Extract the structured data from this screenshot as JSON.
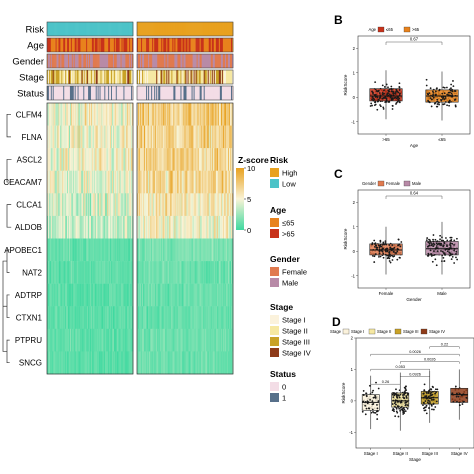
{
  "heatmap": {
    "annotation_rows": [
      "Risk",
      "Age",
      "Gender",
      "Stage",
      "Status"
    ],
    "genes": [
      "CLFM4",
      "FLNA",
      "ASCL2",
      "CEACAM7",
      "CLCA1",
      "ALDOB",
      "APOBEC1",
      "NAT2",
      "ADTRP",
      "CTXN1",
      "PTPRU",
      "SNCG"
    ],
    "groups": [
      "High",
      "Low"
    ],
    "low_group_fraction": 0.58,
    "gene_mean_zscore": [
      6.3,
      6.0,
      5.8,
      5.6,
      5.1,
      4.3,
      1.3,
      1.1,
      1.0,
      0.9,
      1.1,
      1.0
    ],
    "group_shift": [
      1.1,
      0.9,
      1.0,
      1.0,
      0.9,
      0.8,
      0.3,
      0.2,
      0.2,
      0.2,
      0.2,
      0.2
    ],
    "colors": {
      "risk_high": "#e8a11f",
      "risk_low": "#4cc3c8",
      "age_young": "#e8821c",
      "age_old": "#c8321a",
      "female": "#e07a4f",
      "male": "#b88aa7",
      "stage_1": "#fbf2dc",
      "stage_2": "#f6e8a2",
      "stage_3": "#c9a227",
      "stage_4": "#8e3b19",
      "status_0": "#f3dde6",
      "status_1": "#57708a",
      "heat_low": "#3fd9a0",
      "heat_mid": "#f9f3d6",
      "heat_high": "#e8a11f"
    }
  },
  "legend": {
    "zscore": {
      "title": "Z-score",
      "ticks": [
        "10",
        "5",
        "0"
      ],
      "range": [
        0,
        10
      ]
    },
    "risk": {
      "title": "Risk",
      "items": [
        "High",
        "Low"
      ]
    },
    "age": {
      "title": "Age",
      "items": [
        "≤65",
        ">65"
      ]
    },
    "gender": {
      "title": "Gender",
      "items": [
        "Female",
        "Male"
      ]
    },
    "stage": {
      "title": "Stage",
      "items": [
        "Stage I",
        "Stage II",
        "Stage III",
        "Stage IV"
      ]
    },
    "status": {
      "title": "Status",
      "items": [
        "0",
        "1"
      ]
    }
  },
  "chart_data": [
    {
      "panel": "B",
      "type": "box",
      "legend_title": "Age",
      "legend_items": [
        "≤65",
        ">65"
      ],
      "categories": [
        ">65",
        "≤65"
      ],
      "xlabel": "Age",
      "ylabel": "RiskScore",
      "pvalue": "0.67",
      "ylim": [
        -1.5,
        2.5
      ],
      "boxes": [
        {
          "q1": -0.15,
          "median": 0.05,
          "q3": 0.35,
          "whisker_low": -0.9,
          "whisker_high": 1.1,
          "color": "#c8321a",
          "n": 170
        },
        {
          "q1": -0.2,
          "median": 0.05,
          "q3": 0.3,
          "whisker_low": -0.95,
          "whisker_high": 1.05,
          "color": "#e8821c",
          "n": 110
        }
      ]
    },
    {
      "panel": "C",
      "type": "box",
      "legend_title": "Gender",
      "legend_items": [
        "Female",
        "Male"
      ],
      "categories": [
        "Female",
        "Male"
      ],
      "xlabel": "Gender",
      "ylabel": "RiskScore",
      "pvalue": "0.64",
      "ylim": [
        -1.5,
        2.5
      ],
      "boxes": [
        {
          "q1": -0.15,
          "median": 0.05,
          "q3": 0.3,
          "whisker_low": -0.95,
          "whisker_high": 1.0,
          "color": "#e07a4f",
          "n": 130
        },
        {
          "q1": -0.15,
          "median": 0.1,
          "q3": 0.4,
          "whisker_low": -0.95,
          "whisker_high": 1.2,
          "color": "#b88aa7",
          "n": 150
        }
      ]
    },
    {
      "panel": "D",
      "type": "box",
      "legend_title": "Stage",
      "legend_items": [
        "Stage I",
        "Stage II",
        "Stage III",
        "Stage IV"
      ],
      "categories": [
        "Stage I",
        "Stage II",
        "Stage III",
        "Stage IV"
      ],
      "xlabel": "Stage",
      "ylabel": "RiskScore",
      "pvalue_brackets": [
        {
          "from": 0,
          "to": 1,
          "label": "0.26"
        },
        {
          "from": 0,
          "to": 2,
          "label": "0.053"
        },
        {
          "from": 0,
          "to": 3,
          "label": "0.0026"
        },
        {
          "from": 1,
          "to": 2,
          "label": "0.0926"
        },
        {
          "from": 1,
          "to": 3,
          "label": "0.0026"
        },
        {
          "from": 2,
          "to": 3,
          "label": "0.22"
        }
      ],
      "ylim": [
        -1.5,
        2.0
      ],
      "boxes": [
        {
          "q1": -0.3,
          "median": -0.05,
          "q3": 0.2,
          "whisker_low": -0.9,
          "whisker_high": 0.8,
          "color": "#fbf2dc",
          "n": 55
        },
        {
          "q1": -0.2,
          "median": 0.0,
          "q3": 0.25,
          "whisker_low": -0.95,
          "whisker_high": 0.9,
          "color": "#f6e8a2",
          "n": 120
        },
        {
          "q1": -0.1,
          "median": 0.1,
          "q3": 0.3,
          "whisker_low": -0.7,
          "whisker_high": 0.95,
          "color": "#c9a227",
          "n": 80
        },
        {
          "q1": -0.05,
          "median": 0.2,
          "q3": 0.4,
          "whisker_low": -0.6,
          "whisker_high": 1.0,
          "color": "#8e3b19",
          "n": 30
        }
      ]
    }
  ]
}
